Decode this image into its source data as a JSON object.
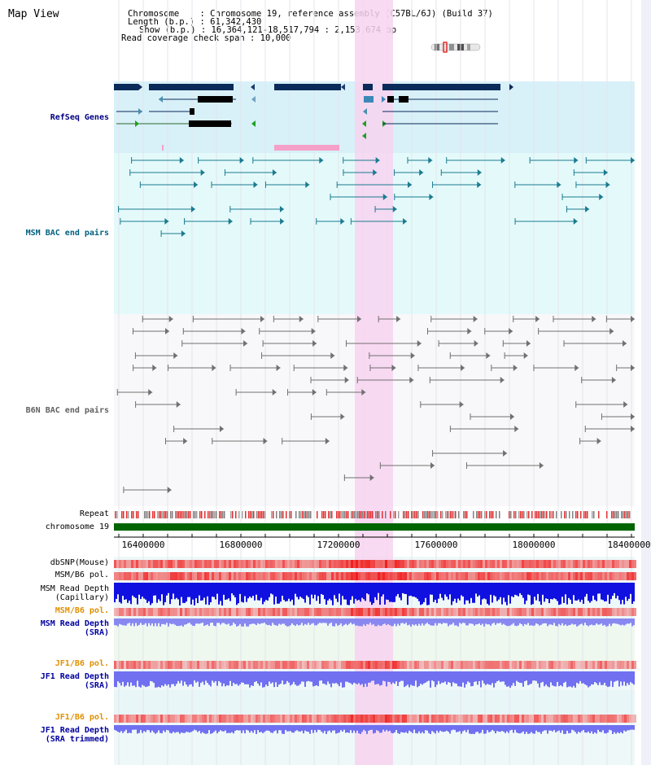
{
  "header": {
    "title": "Map View",
    "info_lines": [
      "Chromosome    : Chromosome 19, reference assembly (C57BL/6J) (Build 37)",
      "Length (b.p.) : 61,342,430",
      "Show (b.p.) : 16,364,121-18,517,794 : 2,153,674 bp",
      "Read coverage check span : 10,000"
    ]
  },
  "tracks": {
    "refseq": {
      "label": "RefSeq Genes",
      "color": "#000080"
    },
    "msm_bac": {
      "label": "MSM BAC end pairs",
      "color": "#006080"
    },
    "b6n_bac": {
      "label": "B6N BAC end pairs",
      "color": "#606060"
    },
    "repeat": {
      "label": "Repeat"
    },
    "chromosome": {
      "label": "chromosome 19",
      "color": "#006400"
    },
    "dbsnp": {
      "label": "dbSNP(Mouse)"
    },
    "msm_b6_pol_1": {
      "label": "MSM/B6 pol."
    },
    "msm_read_depth_cap": {
      "label_line1": "MSM Read Depth",
      "label_line2": "(Capillary)"
    },
    "msm_b6_pol_2": {
      "label": "MSM/B6 pol.",
      "color": "#e09000"
    },
    "msm_read_depth_sra": {
      "label_line1": "MSM Read Depth",
      "label_line2": "(SRA)",
      "color": "#0000a0"
    },
    "jf1_b6_pol_1": {
      "label": "JF1/B6 pol.",
      "color": "#e09000"
    },
    "jf1_read_depth_sra": {
      "label_line1": "JF1 Read Depth",
      "label_line2": "(SRA)",
      "color": "#0000a0"
    },
    "jf1_b6_pol_2": {
      "label": "JF1/B6 pol.",
      "color": "#e09000"
    },
    "jf1_read_depth_trim": {
      "label_line1": "JF1 Read Depth",
      "label_line2": "(SRA trimmed)",
      "color": "#0000a0"
    }
  },
  "axis": {
    "ticks": [
      "16400000",
      "16800000",
      "17200000",
      "17600000",
      "18000000",
      "18400000"
    ]
  },
  "colors": {
    "highlight": "#f8d8f0",
    "refseq_bg": "#d8f0f8",
    "msm_bg": "#e4fafa",
    "depth_cap": "#0000e0",
    "depth_sra": "#8080f0",
    "pol_red": "#f04040"
  }
}
